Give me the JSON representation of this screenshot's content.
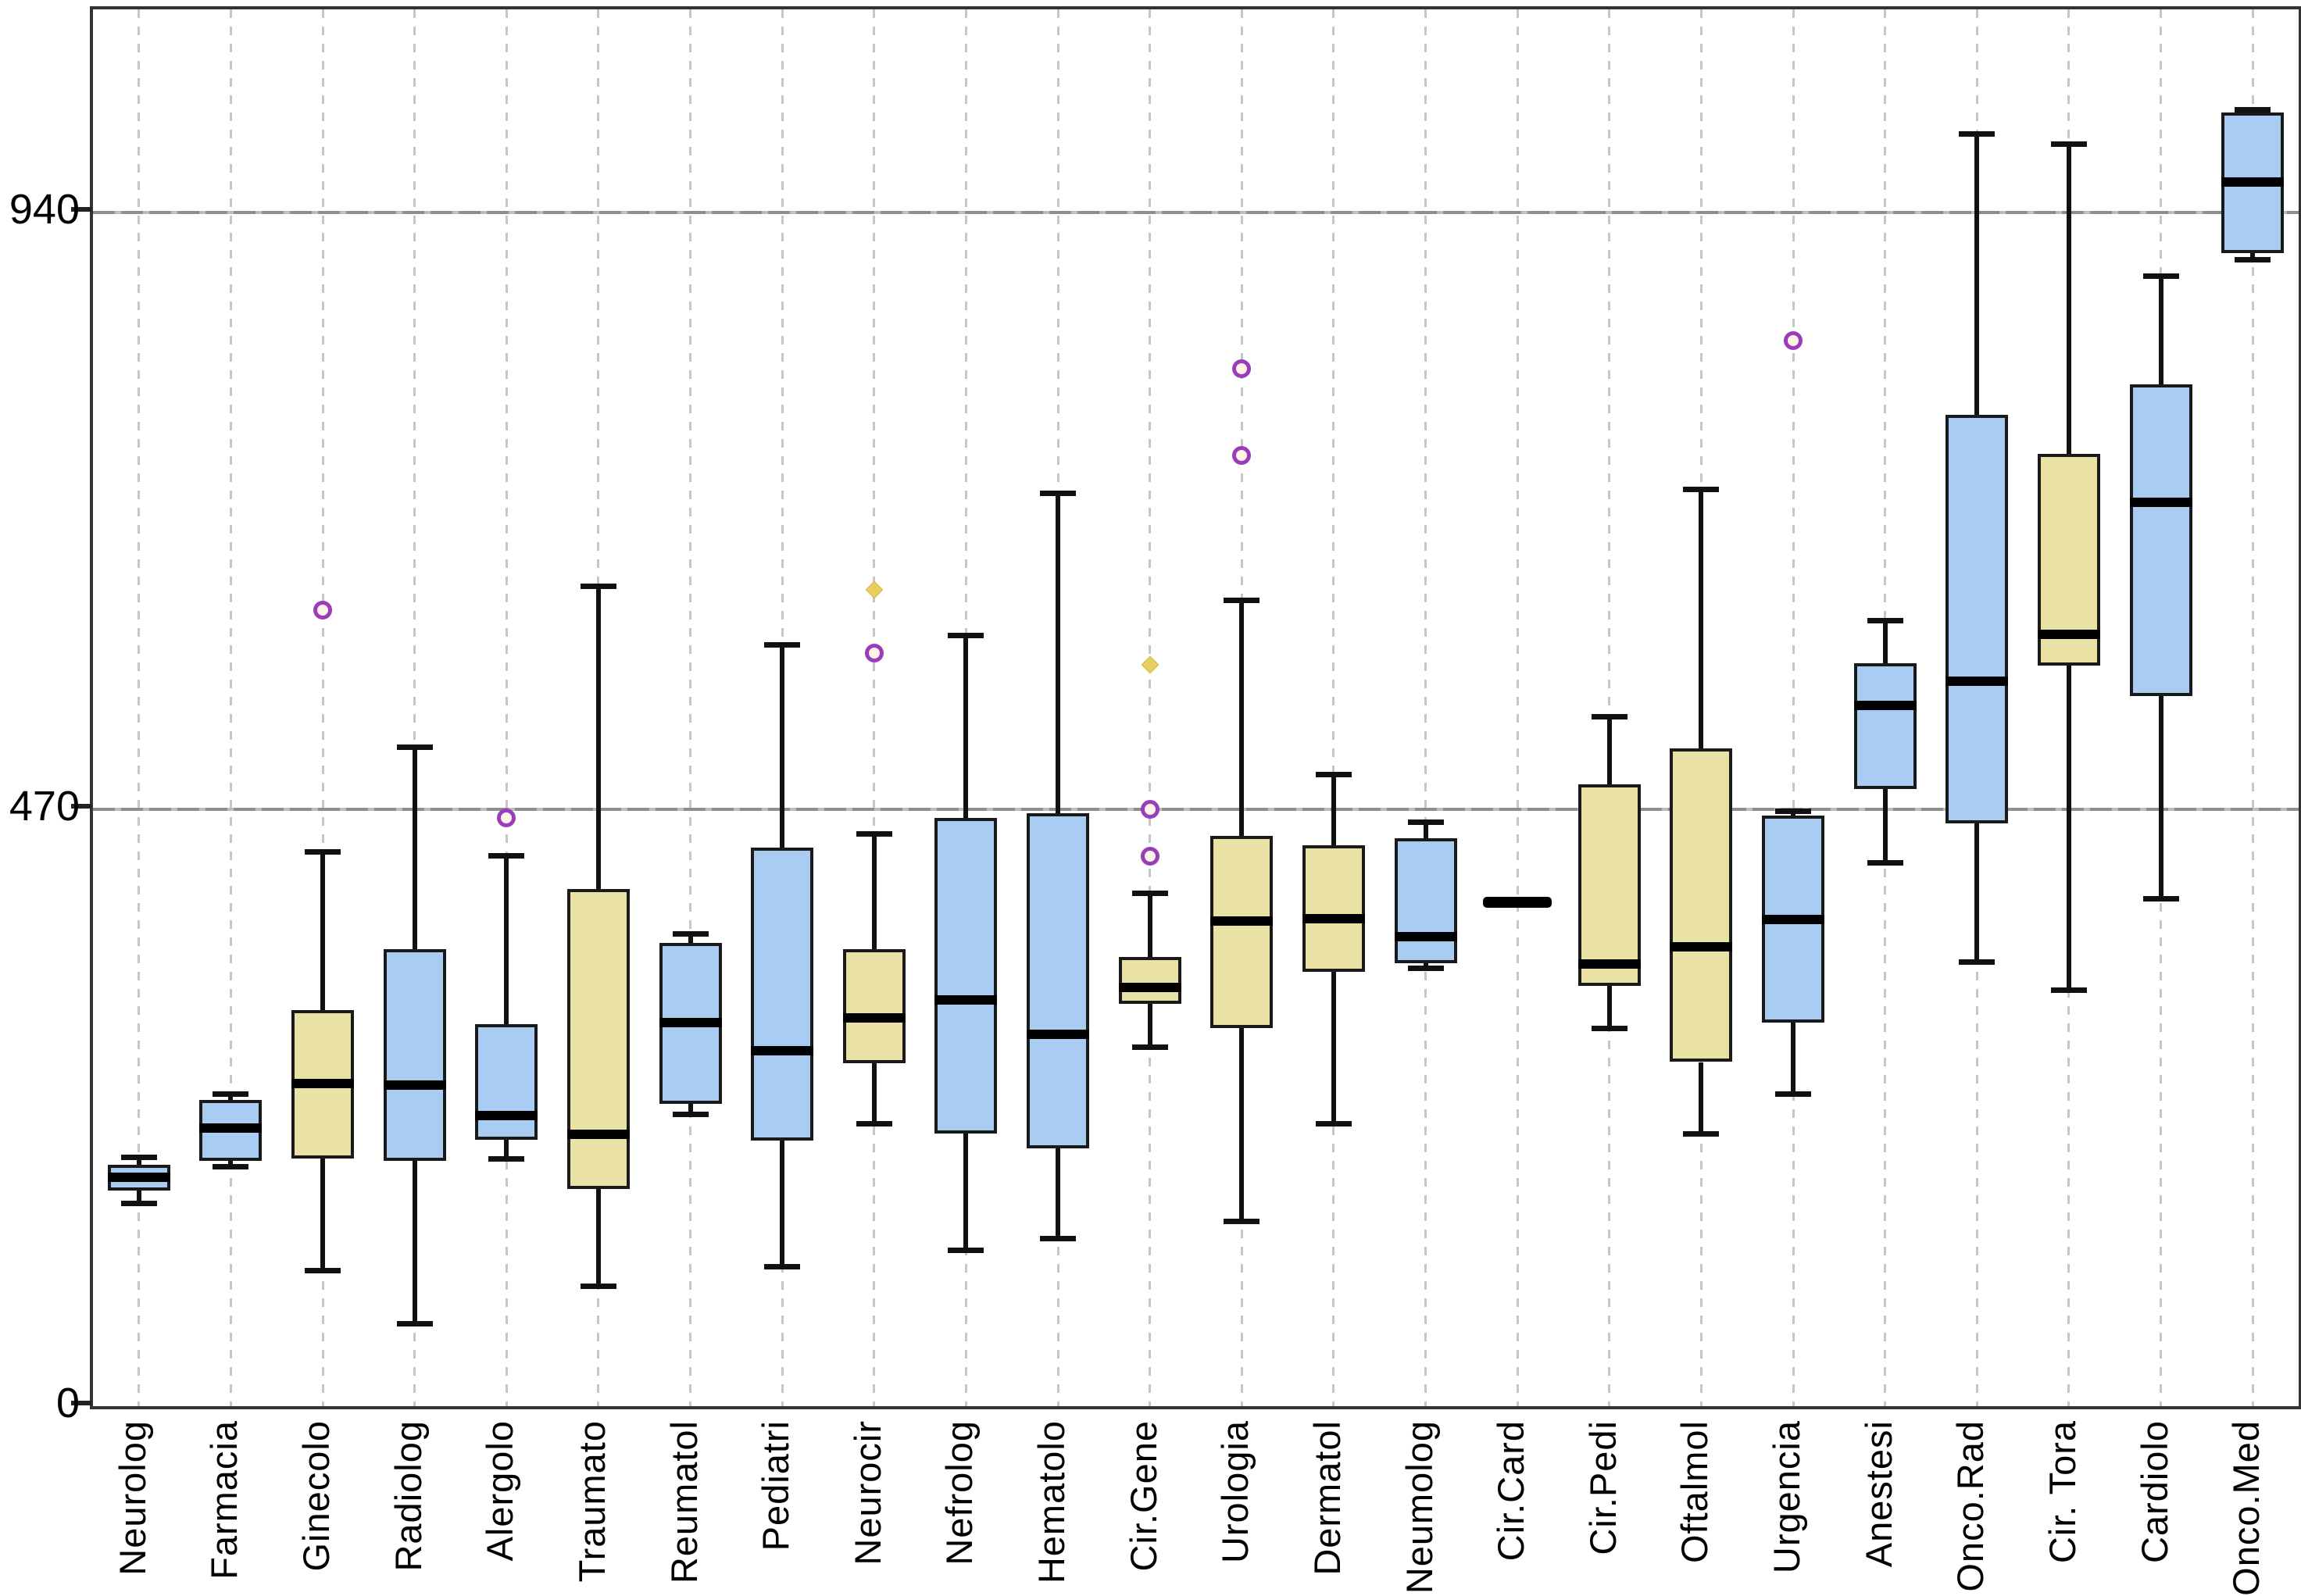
{
  "chart_data": {
    "type": "boxplot",
    "title": "",
    "xlabel": "",
    "ylabel": "",
    "yticks": [
      0,
      470,
      940
    ],
    "ylim": [
      0,
      1100
    ],
    "grid": {
      "vertical": "dashed",
      "horizontal_at": [
        470,
        940
      ]
    },
    "legend_position": "none",
    "colors": {
      "box_blue": "#a9cdf2",
      "box_tan": "#eae2a4",
      "box_border": "#1a1a1a",
      "median": "#000000",
      "whisker": "#111111",
      "outlier_circle": "#9b3dbb",
      "outlier_star": "#e8cf5e",
      "gridline": "#c6c6c6",
      "axis_frame": "#333333"
    },
    "categories": [
      "Neurolog",
      "Farmacia",
      "Ginecolo",
      "Radiolog",
      "Alergolo",
      "Traumato",
      "Reumatol",
      "Pediatri",
      "Neurocir",
      "Nefrolog",
      "Hematolo",
      "Cir.Gene",
      "Urologia",
      "Dermatol",
      "Neumolog",
      "Cir.Card",
      "Cir.Pedi",
      "Oftalmol",
      "Urgencia",
      "Anestesi",
      "Onco.Rad",
      "Cir. Tora",
      "Cardiolo",
      "Onco.Med"
    ],
    "series": [
      {
        "name": "Neurolog",
        "color": "blue",
        "min": 160,
        "q1": 170,
        "median": 180,
        "q3": 190,
        "max": 196,
        "outliers": []
      },
      {
        "name": "Farmacia",
        "color": "blue",
        "min": 189,
        "q1": 193,
        "median": 219,
        "q3": 241,
        "max": 246,
        "outliers": []
      },
      {
        "name": "Ginecolo",
        "color": "tan",
        "min": 107,
        "q1": 195,
        "median": 254,
        "q3": 312,
        "max": 437,
        "outliers": [
          {
            "value": 627,
            "type": "circle"
          }
        ]
      },
      {
        "name": "Radiolog",
        "color": "blue",
        "min": 65,
        "q1": 193,
        "median": 253,
        "q3": 360,
        "max": 519,
        "outliers": []
      },
      {
        "name": "Alergolo",
        "color": "blue",
        "min": 195,
        "q1": 210,
        "median": 229,
        "q3": 301,
        "max": 434,
        "outliers": [
          {
            "value": 463,
            "type": "circle"
          }
        ]
      },
      {
        "name": "Traumato",
        "color": "tan",
        "min": 95,
        "q1": 171,
        "median": 214,
        "q3": 407,
        "max": 646,
        "outliers": []
      },
      {
        "name": "Reumatol",
        "color": "blue",
        "min": 230,
        "q1": 238,
        "median": 302,
        "q3": 365,
        "max": 372,
        "outliers": []
      },
      {
        "name": "Pediatri",
        "color": "blue",
        "min": 110,
        "q1": 209,
        "median": 280,
        "q3": 440,
        "max": 600,
        "outliers": []
      },
      {
        "name": "Neurocir",
        "color": "tan",
        "min": 223,
        "q1": 270,
        "median": 306,
        "q3": 360,
        "max": 451,
        "outliers": [
          {
            "value": 593,
            "type": "circle"
          },
          {
            "value": 643,
            "type": "star"
          }
        ]
      },
      {
        "name": "Nefrolog",
        "color": "blue",
        "min": 123,
        "q1": 215,
        "median": 320,
        "q3": 463,
        "max": 607,
        "outliers": []
      },
      {
        "name": "Hematolo",
        "color": "blue",
        "min": 132,
        "q1": 203,
        "median": 293,
        "q3": 467,
        "max": 719,
        "outliers": []
      },
      {
        "name": "Cir.Gene",
        "color": "tan",
        "min": 283,
        "q1": 317,
        "median": 330,
        "q3": 354,
        "max": 404,
        "outliers": [
          {
            "value": 433,
            "type": "circle"
          },
          {
            "value": 470,
            "type": "circle"
          },
          {
            "value": 584,
            "type": "star"
          }
        ]
      },
      {
        "name": "Urologia",
        "color": "tan",
        "min": 146,
        "q1": 298,
        "median": 382,
        "q3": 449,
        "max": 635,
        "outliers": [
          {
            "value": 749,
            "type": "circle"
          },
          {
            "value": 817,
            "type": "circle"
          }
        ]
      },
      {
        "name": "Dermatol",
        "color": "tan",
        "min": 223,
        "q1": 342,
        "median": 384,
        "q3": 442,
        "max": 498,
        "outliers": []
      },
      {
        "name": "Neumolog",
        "color": "blue",
        "min": 345,
        "q1": 349,
        "median": 370,
        "q3": 447,
        "max": 460,
        "outliers": []
      },
      {
        "name": "Cir.Card",
        "color": "black",
        "dash_only": true,
        "min": 397,
        "q1": 397,
        "median": 397,
        "q3": 397,
        "max": 397,
        "outliers": []
      },
      {
        "name": "Cir.Pedi",
        "color": "tan",
        "min": 298,
        "q1": 331,
        "median": 348,
        "q3": 490,
        "max": 543,
        "outliers": []
      },
      {
        "name": "Oftalmol",
        "color": "tan",
        "min": 215,
        "q1": 271,
        "median": 362,
        "q3": 518,
        "max": 722,
        "outliers": []
      },
      {
        "name": "Urgencia",
        "color": "blue",
        "min": 246,
        "q1": 302,
        "median": 383,
        "q3": 465,
        "max": 469,
        "outliers": [
          {
            "value": 839,
            "type": "circle"
          }
        ]
      },
      {
        "name": "Anestesi",
        "color": "blue",
        "min": 428,
        "q1": 486,
        "median": 552,
        "q3": 585,
        "max": 619,
        "outliers": []
      },
      {
        "name": "Onco.Rad",
        "color": "blue",
        "min": 350,
        "q1": 459,
        "median": 571,
        "q3": 781,
        "max": 1002,
        "outliers": []
      },
      {
        "name": "Cir. Tora",
        "color": "tan",
        "min": 328,
        "q1": 583,
        "median": 608,
        "q3": 750,
        "max": 994,
        "outliers": []
      },
      {
        "name": "Cardiolo",
        "color": "blue",
        "min": 400,
        "q1": 559,
        "median": 712,
        "q3": 805,
        "max": 890,
        "outliers": []
      },
      {
        "name": "Onco.Med",
        "color": "blue",
        "min": 903,
        "q1": 908,
        "median": 964,
        "q3": 1019,
        "max": 1021,
        "outliers": []
      }
    ]
  }
}
